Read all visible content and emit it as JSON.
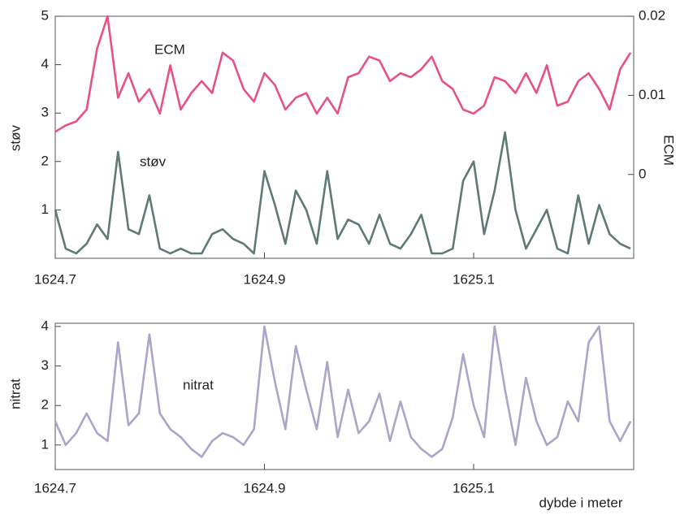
{
  "chart_data": [
    {
      "type": "line",
      "ylabel": "støv",
      "y2label": "ECM",
      "x": [
        1624.7,
        1624.71,
        1624.72,
        1624.73,
        1624.74,
        1624.75,
        1624.76,
        1624.77,
        1624.78,
        1624.79,
        1624.8,
        1624.81,
        1624.82,
        1624.83,
        1624.84,
        1624.85,
        1624.86,
        1624.87,
        1624.88,
        1624.89,
        1624.9,
        1624.91,
        1624.92,
        1624.93,
        1624.94,
        1624.95,
        1624.96,
        1624.97,
        1624.98,
        1624.99,
        1625.0,
        1625.01,
        1625.02,
        1625.03,
        1625.04,
        1625.05,
        1625.06,
        1625.07,
        1625.08,
        1625.09,
        1625.1,
        1625.11,
        1625.12,
        1625.13,
        1625.14,
        1625.15,
        1625.16,
        1625.17,
        1625.18,
        1625.19,
        1625.2,
        1625.21,
        1625.22,
        1625.23,
        1625.24,
        1625.25
      ],
      "xlim": [
        1624.7,
        1625.253
      ],
      "xticks": [
        1624.7,
        1624.9,
        1625.1
      ],
      "ylim": [
        0,
        5
      ],
      "yticks": [
        1,
        2,
        3,
        4,
        5
      ],
      "y2lim": [
        -0.0106,
        0.02
      ],
      "y2ticks": [
        0,
        0.01,
        0.02
      ],
      "series": [
        {
          "name": "ECM",
          "color": "#e8508a",
          "axis": "y2",
          "values": [
            0.0054,
            0.0062,
            0.0067,
            0.0082,
            0.0159,
            0.02,
            0.0097,
            0.0128,
            0.0092,
            0.0108,
            0.0077,
            0.0138,
            0.0082,
            0.0103,
            0.0118,
            0.0103,
            0.0154,
            0.0144,
            0.0108,
            0.0092,
            0.0128,
            0.0113,
            0.0082,
            0.0097,
            0.0103,
            0.0077,
            0.0097,
            0.0077,
            0.0123,
            0.0128,
            0.0149,
            0.0144,
            0.0118,
            0.0128,
            0.0123,
            0.0133,
            0.0149,
            0.0118,
            0.0108,
            0.0082,
            0.0077,
            0.0087,
            0.0123,
            0.0118,
            0.0103,
            0.0128,
            0.0103,
            0.0138,
            0.0087,
            0.0092,
            0.0118,
            0.0128,
            0.0108,
            0.0082,
            0.0133,
            0.0154
          ]
        },
        {
          "name": "støv",
          "color": "#5e7a72",
          "values": [
            1.0,
            0.2,
            0.1,
            0.3,
            0.7,
            0.4,
            2.2,
            0.6,
            0.5,
            1.3,
            0.2,
            0.1,
            0.2,
            0.1,
            0.1,
            0.5,
            0.6,
            0.4,
            0.3,
            0.1,
            1.8,
            1.1,
            0.3,
            1.4,
            1.0,
            0.3,
            1.8,
            0.4,
            0.8,
            0.7,
            0.3,
            0.9,
            0.3,
            0.2,
            0.5,
            0.9,
            0.1,
            0.1,
            0.2,
            1.6,
            2.0,
            0.5,
            1.4,
            2.6,
            1.0,
            0.2,
            0.6,
            1.0,
            0.2,
            0.1,
            1.3,
            0.3,
            1.1,
            0.5,
            0.3,
            0.2
          ]
        }
      ]
    },
    {
      "type": "line",
      "ylabel": "nitrat",
      "xlabel": "dybde i meter",
      "x": [
        1624.7,
        1624.71,
        1624.72,
        1624.73,
        1624.74,
        1624.75,
        1624.76,
        1624.77,
        1624.78,
        1624.79,
        1624.8,
        1624.81,
        1624.82,
        1624.83,
        1624.84,
        1624.85,
        1624.86,
        1624.87,
        1624.88,
        1624.89,
        1624.9,
        1624.91,
        1624.92,
        1624.93,
        1624.94,
        1624.95,
        1624.96,
        1624.97,
        1624.98,
        1624.99,
        1625.0,
        1625.01,
        1625.02,
        1625.03,
        1625.04,
        1625.05,
        1625.06,
        1625.07,
        1625.08,
        1625.09,
        1625.1,
        1625.11,
        1625.12,
        1625.13,
        1625.14,
        1625.15,
        1625.16,
        1625.17,
        1625.18,
        1625.19,
        1625.2,
        1625.21,
        1625.22,
        1625.23,
        1625.24,
        1625.25
      ],
      "xlim": [
        1624.7,
        1625.253
      ],
      "xticks": [
        1624.7,
        1624.9,
        1625.1
      ],
      "ylim": [
        0.38,
        4.08
      ],
      "yticks": [
        1,
        2,
        3,
        4
      ],
      "series": [
        {
          "name": "nitrat",
          "color": "#a9a6c8",
          "values": [
            1.6,
            1.0,
            1.3,
            1.8,
            1.3,
            1.1,
            3.6,
            1.5,
            1.8,
            3.8,
            1.8,
            1.4,
            1.2,
            0.9,
            0.7,
            1.1,
            1.3,
            1.2,
            1.0,
            1.4,
            4.0,
            2.6,
            1.4,
            3.5,
            2.4,
            1.4,
            3.1,
            1.2,
            2.4,
            1.3,
            1.6,
            2.3,
            1.1,
            2.1,
            1.2,
            0.9,
            0.7,
            0.9,
            1.7,
            3.3,
            2.0,
            1.2,
            4.0,
            2.4,
            1.0,
            2.7,
            1.6,
            1.0,
            1.2,
            2.1,
            1.6,
            3.6,
            4.0,
            1.6,
            1.1,
            1.6
          ]
        }
      ]
    }
  ]
}
